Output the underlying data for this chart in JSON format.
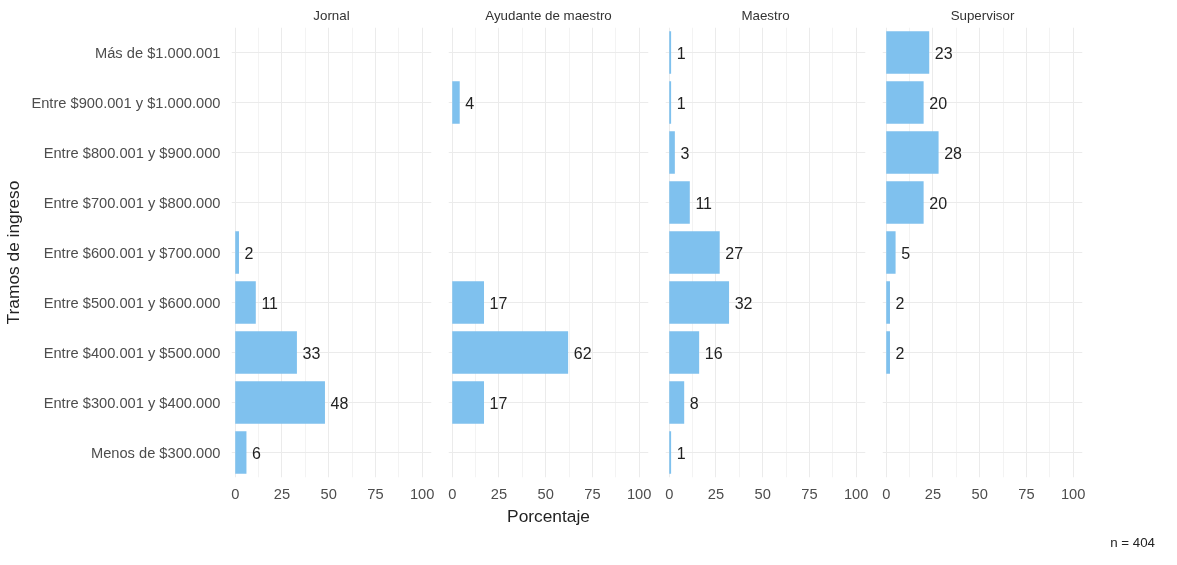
{
  "chart_data": [
    {
      "type": "bar",
      "orientation": "horizontal",
      "title": "Jornal",
      "ylabel": "Tramos de ingreso",
      "categories": [
        "Más de $1.000.001",
        "Entre $900.001 y $1.000.000",
        "Entre $800.001 y $900.000",
        "Entre $700.001 y $800.000",
        "Entre $600.001 y $700.000",
        "Entre $500.001 y $600.000",
        "Entre $400.001 y $500.000",
        "Entre $300.001 y $400.000",
        "Menos de $300.000"
      ],
      "values": [
        null,
        null,
        null,
        null,
        2,
        11,
        33,
        48,
        6
      ],
      "color": "#7fc1ee",
      "data_labels": true,
      "xlim": [
        -2,
        105
      ],
      "xticks": [
        0,
        25,
        50,
        75,
        100
      ],
      "grid": true
    },
    {
      "type": "bar",
      "orientation": "horizontal",
      "title": "Ayudante de maestro",
      "xlabel": "Porcentaje",
      "categories": [
        "Más de $1.000.001",
        "Entre $900.001 y $1.000.000",
        "Entre $800.001 y $900.000",
        "Entre $700.001 y $800.000",
        "Entre $600.001 y $700.000",
        "Entre $500.001 y $600.000",
        "Entre $400.001 y $500.000",
        "Entre $300.001 y $400.000",
        "Menos de $300.000"
      ],
      "values": [
        null,
        4,
        null,
        null,
        null,
        17,
        62,
        17,
        null
      ],
      "color": "#7fc1ee",
      "data_labels": true,
      "xlim": [
        -2,
        105
      ],
      "xticks": [
        0,
        25,
        50,
        75,
        100
      ],
      "grid": true,
      "tick_labels": "x"
    },
    {
      "type": "bar",
      "orientation": "horizontal",
      "title": "Maestro",
      "categories": [
        "Más de $1.000.001",
        "Entre $900.001 y $1.000.000",
        "Entre $800.001 y $900.000",
        "Entre $700.001 y $800.000",
        "Entre $600.001 y $700.000",
        "Entre $500.001 y $600.000",
        "Entre $400.001 y $500.000",
        "Entre $300.001 y $400.000",
        "Menos de $300.000"
      ],
      "values": [
        1,
        1,
        3,
        11,
        27,
        32,
        16,
        8,
        1
      ],
      "color": "#7fc1ee",
      "data_labels": true,
      "xlim": [
        -2,
        105
      ],
      "xticks": [
        0,
        25,
        50,
        75,
        100
      ],
      "grid": true,
      "tick_labels": "x"
    },
    {
      "type": "bar",
      "orientation": "horizontal",
      "title": "Supervisor",
      "categories": [
        "Más de $1.000.001",
        "Entre $900.001 y $1.000.000",
        "Entre $800.001 y $900.000",
        "Entre $700.001 y $800.000",
        "Entre $600.001 y $700.000",
        "Entre $500.001 y $600.000",
        "Entre $400.001 y $500.000",
        "Entre $300.001 y $400.000",
        "Menos de $300.000"
      ],
      "values": [
        23,
        20,
        28,
        20,
        5,
        2,
        2,
        null,
        null
      ],
      "color": "#7fc1ee",
      "data_labels": true,
      "xlim": [
        -2,
        105
      ],
      "xticks": [
        0,
        25,
        50,
        75,
        100
      ],
      "grid": true,
      "tick_labels": "x",
      "annotations": [
        "n = 404"
      ]
    }
  ]
}
